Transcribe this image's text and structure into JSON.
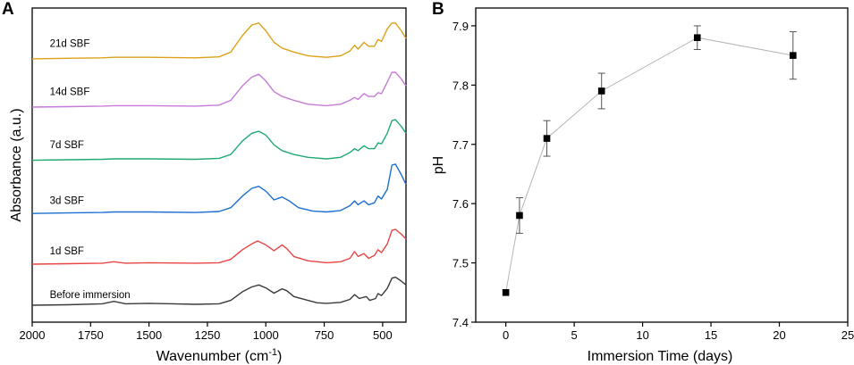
{
  "chart_data": [
    {
      "type": "line",
      "panel": "A",
      "title": "",
      "xlabel": "Wavenumber (cm",
      "xlabel_sup": "-1",
      "xlabel_close": ")",
      "ylabel": "Absorbance (a.u.)",
      "xlim": [
        2000,
        400
      ],
      "ylim": [
        0,
        6.5
      ],
      "x_ticks": [
        2000,
        1750,
        1500,
        1250,
        1000,
        750,
        500
      ],
      "x_tick_labels": [
        "2000",
        "1750",
        "1500",
        "1250",
        "1000",
        "750",
        "500"
      ],
      "y_ticks": [],
      "series": [
        {
          "name": "Before immersion",
          "color": "#3a3a3a",
          "offset": 0.35,
          "label_at": 1925,
          "label_y": 0.5,
          "points": [
            [
              2000,
              0.0
            ],
            [
              1850,
              0.01
            ],
            [
              1700,
              0.03
            ],
            [
              1650,
              0.08
            ],
            [
              1600,
              0.03
            ],
            [
              1500,
              0.04
            ],
            [
              1400,
              0.03
            ],
            [
              1300,
              0.02
            ],
            [
              1200,
              0.03
            ],
            [
              1150,
              0.1
            ],
            [
              1100,
              0.28
            ],
            [
              1060,
              0.38
            ],
            [
              1030,
              0.42
            ],
            [
              1000,
              0.36
            ],
            [
              965,
              0.25
            ],
            [
              930,
              0.34
            ],
            [
              910,
              0.3
            ],
            [
              880,
              0.18
            ],
            [
              820,
              0.1
            ],
            [
              780,
              0.05
            ],
            [
              740,
              0.04
            ],
            [
              680,
              0.06
            ],
            [
              640,
              0.12
            ],
            [
              620,
              0.22
            ],
            [
              600,
              0.14
            ],
            [
              570,
              0.18
            ],
            [
              555,
              0.1
            ],
            [
              530,
              0.14
            ],
            [
              520,
              0.24
            ],
            [
              505,
              0.2
            ],
            [
              480,
              0.35
            ],
            [
              460,
              0.56
            ],
            [
              445,
              0.58
            ],
            [
              420,
              0.5
            ],
            [
              400,
              0.42
            ]
          ]
        },
        {
          "name": "1d SBF",
          "color": "#e84545",
          "offset": 1.2,
          "label_at": 1925,
          "label_y": 1.4,
          "points": [
            [
              2000,
              0.0
            ],
            [
              1850,
              0.01
            ],
            [
              1700,
              0.02
            ],
            [
              1650,
              0.05
            ],
            [
              1600,
              0.02
            ],
            [
              1500,
              0.03
            ],
            [
              1300,
              0.02
            ],
            [
              1200,
              0.03
            ],
            [
              1150,
              0.1
            ],
            [
              1100,
              0.3
            ],
            [
              1060,
              0.42
            ],
            [
              1035,
              0.48
            ],
            [
              1000,
              0.4
            ],
            [
              965,
              0.28
            ],
            [
              930,
              0.4
            ],
            [
              910,
              0.32
            ],
            [
              880,
              0.16
            ],
            [
              820,
              0.07
            ],
            [
              740,
              0.03
            ],
            [
              680,
              0.05
            ],
            [
              640,
              0.12
            ],
            [
              620,
              0.26
            ],
            [
              605,
              0.16
            ],
            [
              580,
              0.22
            ],
            [
              560,
              0.12
            ],
            [
              535,
              0.18
            ],
            [
              520,
              0.3
            ],
            [
              505,
              0.24
            ],
            [
              480,
              0.42
            ],
            [
              460,
              0.7
            ],
            [
              445,
              0.72
            ],
            [
              420,
              0.62
            ],
            [
              400,
              0.52
            ]
          ]
        },
        {
          "name": "3d SBF",
          "color": "#1a6fd1",
          "offset": 2.25,
          "label_at": 1925,
          "label_y": 2.45,
          "points": [
            [
              2000,
              0.0
            ],
            [
              1850,
              0.01
            ],
            [
              1700,
              0.02
            ],
            [
              1650,
              0.03
            ],
            [
              1500,
              0.03
            ],
            [
              1300,
              0.02
            ],
            [
              1200,
              0.04
            ],
            [
              1150,
              0.12
            ],
            [
              1100,
              0.36
            ],
            [
              1060,
              0.52
            ],
            [
              1030,
              0.56
            ],
            [
              1000,
              0.46
            ],
            [
              965,
              0.28
            ],
            [
              930,
              0.34
            ],
            [
              900,
              0.26
            ],
            [
              860,
              0.12
            ],
            [
              800,
              0.05
            ],
            [
              740,
              0.03
            ],
            [
              680,
              0.06
            ],
            [
              640,
              0.16
            ],
            [
              620,
              0.26
            ],
            [
              605,
              0.18
            ],
            [
              580,
              0.26
            ],
            [
              560,
              0.18
            ],
            [
              535,
              0.22
            ],
            [
              520,
              0.36
            ],
            [
              505,
              0.3
            ],
            [
              480,
              0.5
            ],
            [
              460,
              1.0
            ],
            [
              445,
              1.02
            ],
            [
              420,
              0.8
            ],
            [
              400,
              0.6
            ]
          ]
        },
        {
          "name": "7d SBF",
          "color": "#1faa72",
          "offset": 3.35,
          "label_at": 1925,
          "label_y": 3.6,
          "points": [
            [
              2000,
              0.0
            ],
            [
              1850,
              0.01
            ],
            [
              1700,
              0.02
            ],
            [
              1650,
              0.03
            ],
            [
              1500,
              0.03
            ],
            [
              1300,
              0.02
            ],
            [
              1200,
              0.04
            ],
            [
              1150,
              0.12
            ],
            [
              1100,
              0.4
            ],
            [
              1060,
              0.56
            ],
            [
              1030,
              0.6
            ],
            [
              1000,
              0.52
            ],
            [
              965,
              0.32
            ],
            [
              930,
              0.2
            ],
            [
              880,
              0.12
            ],
            [
              820,
              0.06
            ],
            [
              740,
              0.03
            ],
            [
              680,
              0.06
            ],
            [
              640,
              0.16
            ],
            [
              620,
              0.24
            ],
            [
              605,
              0.2
            ],
            [
              580,
              0.3
            ],
            [
              560,
              0.24
            ],
            [
              535,
              0.24
            ],
            [
              520,
              0.36
            ],
            [
              505,
              0.34
            ],
            [
              480,
              0.56
            ],
            [
              460,
              0.82
            ],
            [
              445,
              0.84
            ],
            [
              420,
              0.7
            ],
            [
              400,
              0.56
            ]
          ]
        },
        {
          "name": "14d SBF",
          "color": "#c77ad8",
          "offset": 4.45,
          "label_at": 1925,
          "label_y": 4.7,
          "points": [
            [
              2000,
              0.0
            ],
            [
              1850,
              0.01
            ],
            [
              1700,
              0.02
            ],
            [
              1650,
              0.03
            ],
            [
              1500,
              0.03
            ],
            [
              1300,
              0.02
            ],
            [
              1200,
              0.04
            ],
            [
              1150,
              0.14
            ],
            [
              1100,
              0.44
            ],
            [
              1060,
              0.62
            ],
            [
              1030,
              0.68
            ],
            [
              1000,
              0.54
            ],
            [
              965,
              0.32
            ],
            [
              930,
              0.22
            ],
            [
              880,
              0.14
            ],
            [
              820,
              0.06
            ],
            [
              740,
              0.03
            ],
            [
              680,
              0.06
            ],
            [
              640,
              0.14
            ],
            [
              620,
              0.2
            ],
            [
              605,
              0.16
            ],
            [
              580,
              0.28
            ],
            [
              560,
              0.22
            ],
            [
              535,
              0.22
            ],
            [
              520,
              0.3
            ],
            [
              505,
              0.28
            ],
            [
              480,
              0.52
            ],
            [
              460,
              0.72
            ],
            [
              445,
              0.72
            ],
            [
              420,
              0.58
            ],
            [
              400,
              0.44
            ]
          ]
        },
        {
          "name": "21d SBF",
          "color": "#dca21a",
          "offset": 5.45,
          "label_at": 1925,
          "label_y": 5.7,
          "points": [
            [
              2000,
              0.0
            ],
            [
              1850,
              0.01
            ],
            [
              1700,
              0.02
            ],
            [
              1650,
              0.03
            ],
            [
              1500,
              0.03
            ],
            [
              1300,
              0.02
            ],
            [
              1200,
              0.04
            ],
            [
              1150,
              0.14
            ],
            [
              1100,
              0.48
            ],
            [
              1060,
              0.7
            ],
            [
              1030,
              0.74
            ],
            [
              1000,
              0.58
            ],
            [
              965,
              0.34
            ],
            [
              930,
              0.22
            ],
            [
              880,
              0.14
            ],
            [
              820,
              0.06
            ],
            [
              740,
              0.03
            ],
            [
              680,
              0.06
            ],
            [
              640,
              0.16
            ],
            [
              620,
              0.28
            ],
            [
              605,
              0.2
            ],
            [
              580,
              0.34
            ],
            [
              560,
              0.26
            ],
            [
              535,
              0.26
            ],
            [
              520,
              0.4
            ],
            [
              505,
              0.36
            ],
            [
              480,
              0.62
            ],
            [
              460,
              0.74
            ],
            [
              445,
              0.74
            ],
            [
              420,
              0.58
            ],
            [
              400,
              0.42
            ]
          ]
        }
      ]
    },
    {
      "type": "scatter",
      "panel": "B",
      "title": "",
      "xlabel": "Immersion Time (days)",
      "ylabel": "pH",
      "xlim": [
        -2.2,
        25
      ],
      "ylim": [
        7.4,
        7.93
      ],
      "x_ticks": [
        0,
        5,
        10,
        15,
        20,
        25
      ],
      "x_tick_labels": [
        "0",
        "5",
        "10",
        "15",
        "20",
        "25"
      ],
      "y_ticks": [
        7.4,
        7.5,
        7.6,
        7.7,
        7.8,
        7.9
      ],
      "y_tick_labels": [
        "7.4",
        "7.5",
        "7.6",
        "7.7",
        "7.8",
        "7.9"
      ],
      "connect_points": true,
      "line_color": "#b5b5b5",
      "marker_color": "#000000",
      "x": [
        0,
        1,
        3,
        7,
        14,
        21
      ],
      "y": [
        7.45,
        7.58,
        7.71,
        7.79,
        7.88,
        7.85
      ],
      "error": [
        0,
        0.03,
        0.03,
        0.03,
        0.02,
        0.04
      ]
    }
  ]
}
